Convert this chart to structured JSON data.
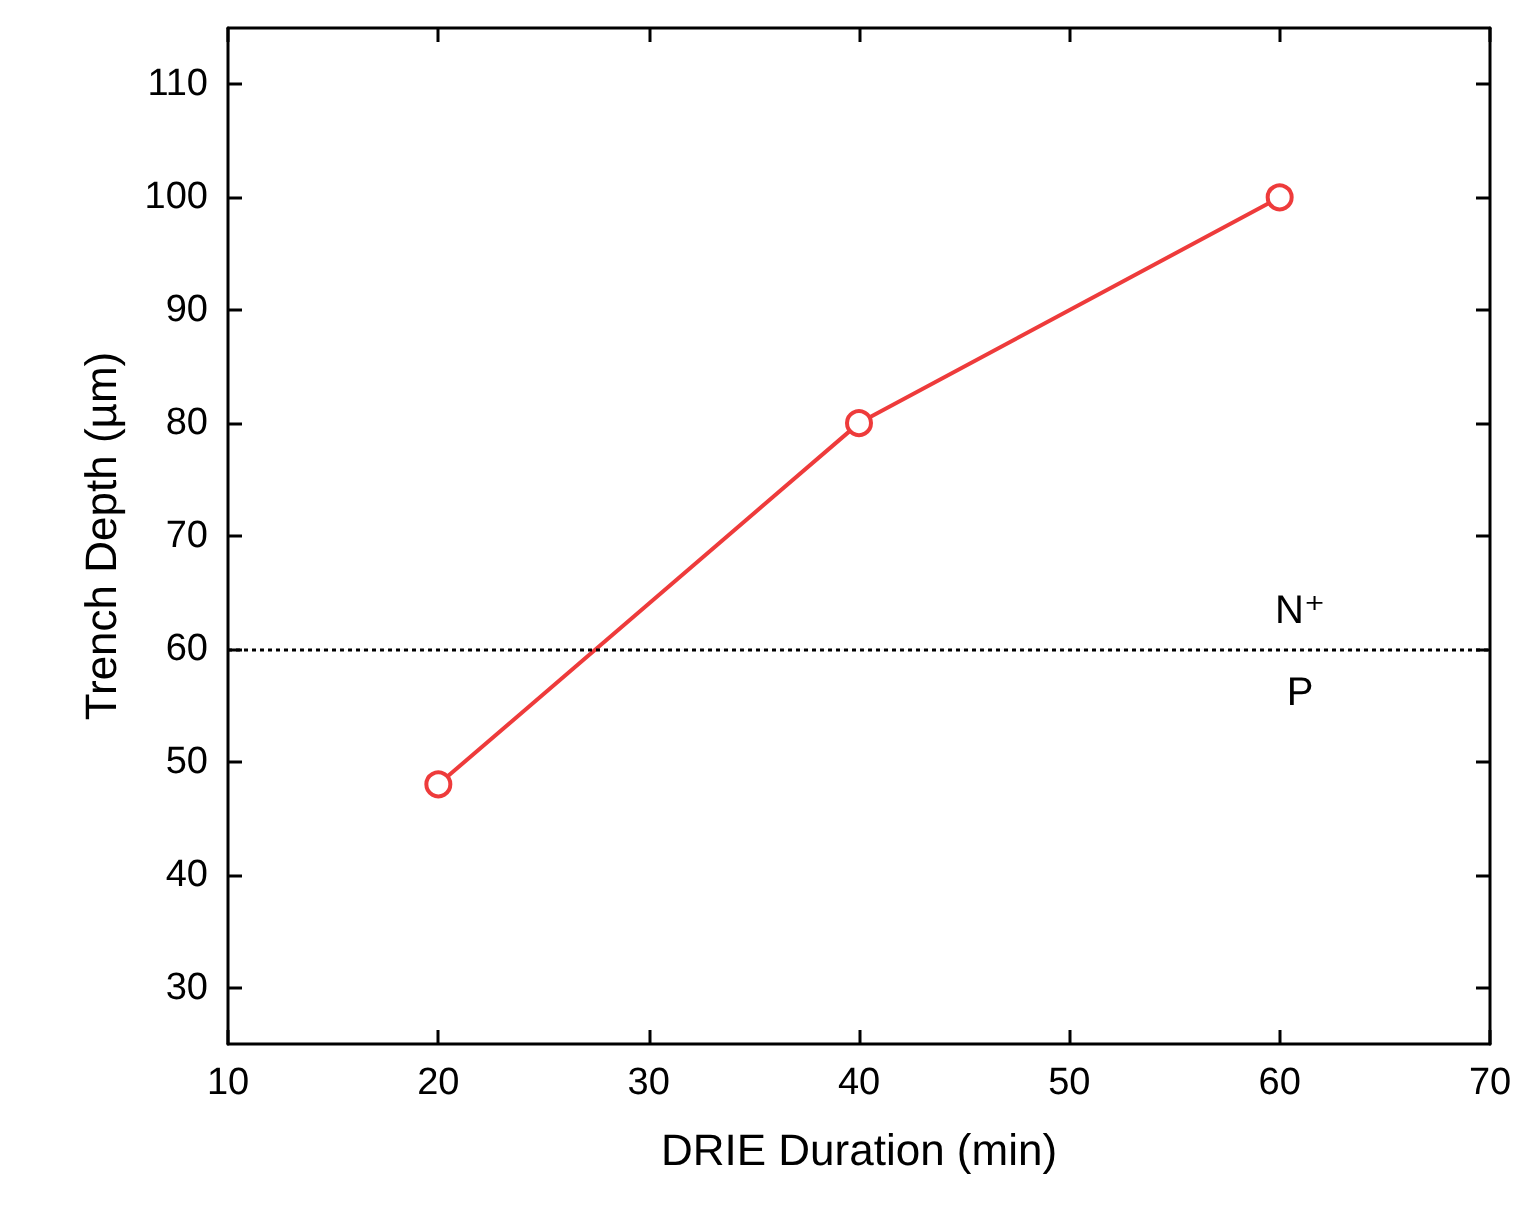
{
  "chart_data": {
    "type": "line",
    "xlabel": "DRIE Duration (min)",
    "ylabel": "Trench Depth (µm)",
    "x": [
      20,
      40,
      60
    ],
    "series": [
      {
        "color": "#ee3b3b",
        "values": [
          48,
          80,
          100
        ]
      }
    ],
    "xlim": [
      10,
      70
    ],
    "xticks": [
      10,
      20,
      30,
      40,
      50,
      60,
      70
    ],
    "ylim": [
      25,
      115
    ],
    "yticks": [
      30,
      40,
      50,
      60,
      70,
      80,
      90,
      100,
      110
    ],
    "ref_lines": [
      {
        "axis": "y",
        "value": 60,
        "color": "#000000",
        "line_style": "dotted"
      }
    ],
    "annotations": [
      "N⁺",
      "P"
    ],
    "marker": "circle",
    "line_style": "solid"
  }
}
